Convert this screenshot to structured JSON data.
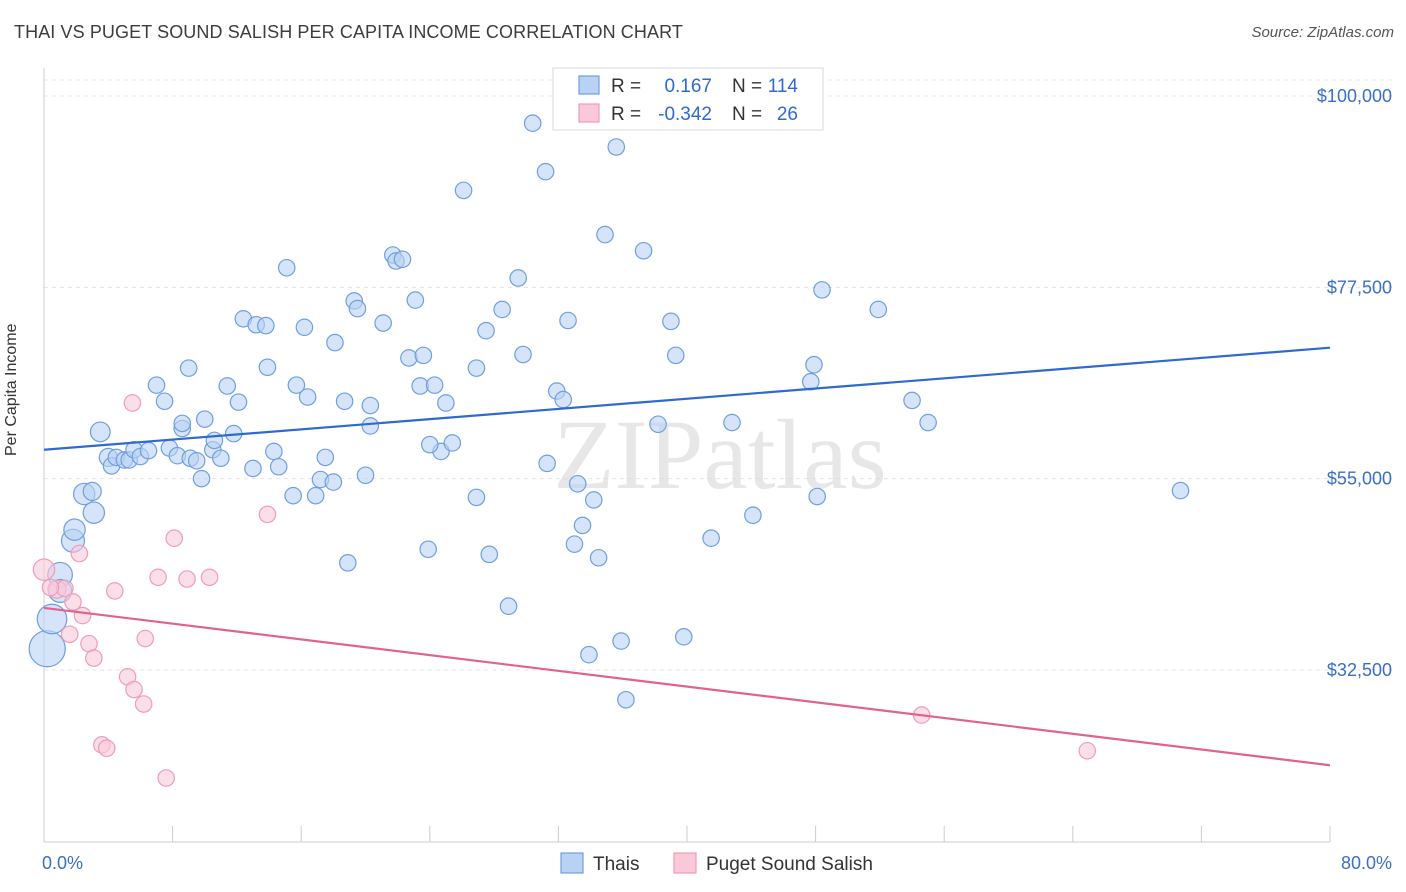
{
  "header": {
    "title": "THAI VS PUGET SOUND SALISH PER CAPITA INCOME CORRELATION CHART",
    "source": "Source: ZipAtlas.com"
  },
  "watermark": "ZIPatlas",
  "colors": {
    "thais": "#6f9fe0",
    "salish": "#f29bb7",
    "thais_line": "#2f6ad0",
    "salish_line": "#e0638f",
    "tick": "#3a6fc4"
  },
  "legend": {
    "rows": [
      {
        "r_label": "R =",
        "r_value": "0.167",
        "n_label": "N =",
        "n_value": "114"
      },
      {
        "r_label": "R =",
        "r_value": "-0.342",
        "n_label": "N =",
        "n_value": "26"
      }
    ]
  },
  "chart_data": {
    "type": "scatter",
    "title": "THAI VS PUGET SOUND SALISH PER CAPITA INCOME CORRELATION CHART",
    "ylabel": "Per Capita Income",
    "xlabel": "",
    "xlim": [
      0,
      80
    ],
    "ylim": [
      11000,
      104000
    ],
    "x_tick_labels": [
      "0.0%",
      "80.0%"
    ],
    "y_ticks": [
      {
        "value": 32500,
        "label": "$32,500"
      },
      {
        "value": 55000,
        "label": "$55,000"
      },
      {
        "value": 77500,
        "label": "$77,500"
      },
      {
        "value": 100000,
        "label": "$100,000"
      }
    ],
    "grid": true,
    "legend_position": "top-center",
    "series": [
      {
        "name": "Thais",
        "r": 0.167,
        "n": 114,
        "trend": [
          [
            0,
            58400
          ],
          [
            80,
            70400
          ]
        ],
        "points": [
          [
            0.2,
            35000,
            2.2
          ],
          [
            0.5,
            38500,
            1.8
          ],
          [
            1.0,
            43700,
            1.5
          ],
          [
            1.0,
            41800,
            1.4
          ],
          [
            1.8,
            47700,
            1.4
          ],
          [
            1.9,
            49000,
            1.3
          ],
          [
            2.5,
            53200,
            1.3
          ],
          [
            3.0,
            53500,
            1.1
          ],
          [
            3.1,
            51000,
            1.3
          ],
          [
            3.5,
            60500,
            1.2
          ],
          [
            4.0,
            57500,
            1.1
          ],
          [
            4.2,
            56500,
            1.0
          ],
          [
            4.5,
            57500,
            1.0
          ],
          [
            5.0,
            57200,
            1.0
          ],
          [
            5.3,
            57200,
            1.0
          ],
          [
            5.6,
            58400,
            1.0
          ],
          [
            6.0,
            57600,
            1.0
          ],
          [
            6.5,
            58300,
            1.0
          ],
          [
            7.0,
            66000,
            1.0
          ],
          [
            7.5,
            64100,
            1.0
          ],
          [
            7.8,
            58600,
            1.0
          ],
          [
            8.3,
            57700,
            1.0
          ],
          [
            8.6,
            60900,
            1.0
          ],
          [
            8.6,
            61500,
            1.0
          ],
          [
            9.0,
            68000,
            1.0
          ],
          [
            9.1,
            57400,
            1.0
          ],
          [
            9.5,
            57100,
            1.0
          ],
          [
            9.8,
            55000,
            1.0
          ],
          [
            10.0,
            62000,
            1.0
          ],
          [
            10.5,
            58400,
            1.0
          ],
          [
            10.6,
            59500,
            1.0
          ],
          [
            11.0,
            57400,
            1.0
          ],
          [
            11.4,
            65900,
            1.0
          ],
          [
            11.8,
            60300,
            1.0
          ],
          [
            12.1,
            64000,
            1.0
          ],
          [
            12.4,
            73800,
            1.0
          ],
          [
            13.0,
            56200,
            1.0
          ],
          [
            13.2,
            73100,
            1.0
          ],
          [
            13.8,
            73000,
            1.0
          ],
          [
            13.9,
            68100,
            1.0
          ],
          [
            14.3,
            58200,
            1.0
          ],
          [
            14.6,
            56400,
            1.0
          ],
          [
            15.1,
            79800,
            1.0
          ],
          [
            15.5,
            53000,
            1.0
          ],
          [
            15.7,
            66000,
            1.0
          ],
          [
            16.2,
            72800,
            1.0
          ],
          [
            16.4,
            64600,
            1.0
          ],
          [
            16.9,
            53000,
            1.0
          ],
          [
            17.2,
            54900,
            1.0
          ],
          [
            17.5,
            57500,
            1.0
          ],
          [
            18.1,
            71000,
            1.0
          ],
          [
            18.7,
            64100,
            1.0
          ],
          [
            18.9,
            45100,
            1.0
          ],
          [
            19.3,
            75900,
            1.0
          ],
          [
            19.5,
            75000,
            1.0
          ],
          [
            20.0,
            55400,
            1.0
          ],
          [
            20.3,
            61200,
            1.0
          ],
          [
            20.3,
            63600,
            1.0
          ],
          [
            21.1,
            73300,
            1.0
          ],
          [
            21.7,
            81300,
            1.0
          ],
          [
            21.9,
            80600,
            1.0
          ],
          [
            22.3,
            80800,
            1.0
          ],
          [
            22.7,
            69200,
            1.0
          ],
          [
            23.1,
            76000,
            1.0
          ],
          [
            23.4,
            65900,
            1.0
          ],
          [
            23.6,
            69500,
            1.0
          ],
          [
            23.9,
            46700,
            1.0
          ],
          [
            24.3,
            66000,
            1.0
          ],
          [
            24.7,
            58200,
            1.0
          ],
          [
            25.0,
            63900,
            1.0
          ],
          [
            25.4,
            59200,
            1.0
          ],
          [
            26.1,
            88900,
            1.0
          ],
          [
            26.9,
            68000,
            1.0
          ],
          [
            26.9,
            52800,
            1.0
          ],
          [
            27.5,
            72400,
            1.0
          ],
          [
            27.7,
            46100,
            1.0
          ],
          [
            28.5,
            74900,
            1.0
          ],
          [
            28.9,
            40000,
            1.0
          ],
          [
            29.5,
            78600,
            1.0
          ],
          [
            29.8,
            69600,
            1.0
          ],
          [
            30.4,
            96800,
            1.0
          ],
          [
            31.2,
            91100,
            1.0
          ],
          [
            31.3,
            56800,
            1.0
          ],
          [
            31.9,
            65300,
            1.0
          ],
          [
            32.3,
            64300,
            1.0
          ],
          [
            32.6,
            73600,
            1.0
          ],
          [
            33.0,
            47300,
            1.0
          ],
          [
            33.2,
            54400,
            1.0
          ],
          [
            33.5,
            49500,
            1.0
          ],
          [
            33.9,
            34300,
            1.0
          ],
          [
            34.2,
            52500,
            1.0
          ],
          [
            34.5,
            45700,
            1.0
          ],
          [
            34.9,
            83700,
            1.0
          ],
          [
            35.9,
            35900,
            1.0
          ],
          [
            36.2,
            29000,
            1.0
          ],
          [
            35.6,
            94000,
            1.0
          ],
          [
            37.3,
            81800,
            1.0
          ],
          [
            38.2,
            61400,
            1.0
          ],
          [
            39.0,
            73500,
            1.0
          ],
          [
            39.3,
            69500,
            1.0
          ],
          [
            39.8,
            36400,
            1.0
          ],
          [
            41.5,
            48000,
            1.0
          ],
          [
            42.8,
            61600,
            1.0
          ],
          [
            44.1,
            50700,
            1.0
          ],
          [
            47.7,
            66400,
            1.0
          ],
          [
            47.9,
            68400,
            1.0
          ],
          [
            48.1,
            52900,
            1.0
          ],
          [
            48.4,
            77200,
            1.0
          ],
          [
            51.9,
            74900,
            1.0
          ],
          [
            54.0,
            64200,
            1.0
          ],
          [
            55.0,
            61600,
            1.0
          ],
          [
            70.7,
            53600,
            1.0
          ],
          [
            24.0,
            59000,
            1.0
          ],
          [
            18.0,
            54600,
            1.0
          ]
        ]
      },
      {
        "name": "Puget Sound Salish",
        "r": -0.342,
        "n": 26,
        "trend": [
          [
            0,
            39800
          ],
          [
            80,
            21300
          ]
        ],
        "points": [
          [
            0.0,
            44300,
            1.3
          ],
          [
            0.8,
            42000,
            1.1
          ],
          [
            1.3,
            42100,
            1.0
          ],
          [
            1.6,
            36700,
            1.0
          ],
          [
            1.8,
            40500,
            1.0
          ],
          [
            2.2,
            46200,
            1.0
          ],
          [
            2.4,
            38900,
            1.0
          ],
          [
            2.8,
            35600,
            1.0
          ],
          [
            3.1,
            33900,
            1.0
          ],
          [
            3.6,
            23700,
            1.0
          ],
          [
            3.9,
            23300,
            1.0
          ],
          [
            4.4,
            41800,
            1.0
          ],
          [
            5.2,
            31700,
            1.0
          ],
          [
            5.5,
            63900,
            1.0
          ],
          [
            5.6,
            30200,
            1.0
          ],
          [
            6.2,
            28500,
            1.0
          ],
          [
            6.3,
            36200,
            1.0
          ],
          [
            7.1,
            43400,
            1.0
          ],
          [
            7.6,
            19800,
            1.0
          ],
          [
            8.1,
            48000,
            1.0
          ],
          [
            8.9,
            43200,
            1.0
          ],
          [
            10.3,
            43400,
            1.0
          ],
          [
            13.9,
            50800,
            1.0
          ],
          [
            54.6,
            27200,
            1.0
          ],
          [
            64.9,
            23000,
            1.0
          ],
          [
            0.4,
            42200,
            1.0
          ]
        ]
      }
    ]
  }
}
